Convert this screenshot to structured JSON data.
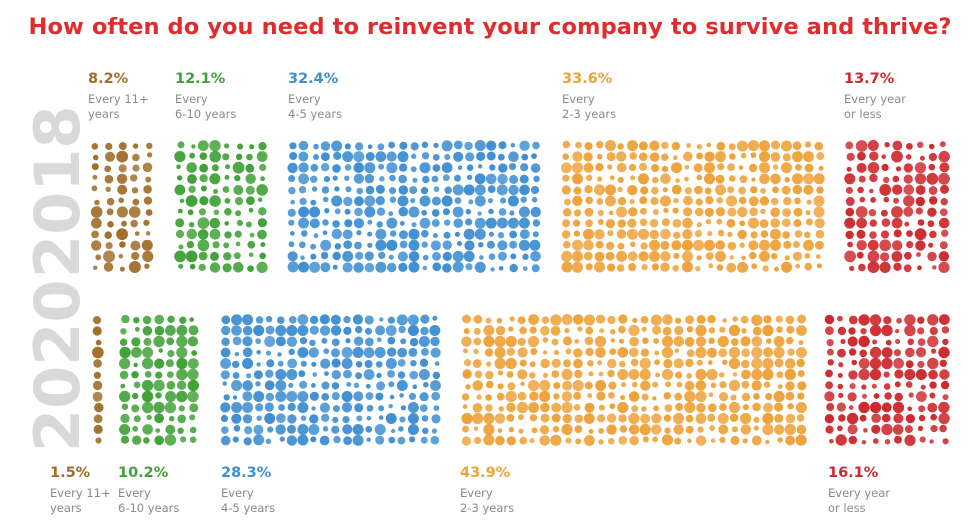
{
  "title": "How often do you need to reinvent your company to survive and thrive?",
  "colors": {
    "title": "#e12b2c",
    "every_11_plus": "#a06e2a",
    "every_6_10": "#3fa137",
    "every_4_5": "#3f8fd2",
    "every_2_3": "#eea23a",
    "every_year": "#cc2a2f",
    "year_label": "#d9d9d9"
  },
  "chart_data": {
    "type": "bubble-block proportional chart",
    "title": "How often do you need to reinvent your company to survive and thrive?",
    "categories": [
      "Every 11+ years",
      "Every 6-10 years",
      "Every 4-5 years",
      "Every 2-3 years",
      "Every year or less"
    ],
    "series": [
      {
        "name": "2018",
        "values": [
          8.2,
          12.1,
          32.4,
          33.6,
          13.7
        ],
        "labels": [
          "8.2%",
          "12.1%",
          "32.4%",
          "33.6%",
          "13.7%"
        ]
      },
      {
        "name": "2020",
        "values": [
          1.5,
          10.2,
          28.3,
          43.9,
          16.1
        ],
        "labels": [
          "1.5%",
          "10.2%",
          "28.3%",
          "43.9%",
          "16.1%"
        ]
      }
    ],
    "descriptions": [
      "Every 11+\nyears",
      "Every\n6-10 years",
      "Every\n4-5 years",
      "Every\n2-3 years",
      "Every year\nor less"
    ],
    "unit": "%"
  }
}
